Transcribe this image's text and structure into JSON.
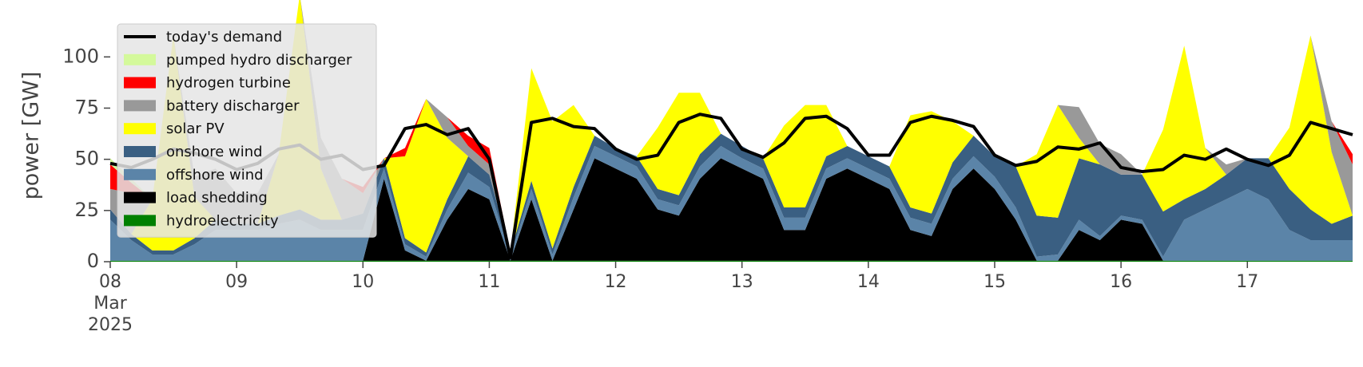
{
  "chart_data": {
    "type": "stacked_area",
    "y_label": "power [GW]",
    "x": [
      8,
      8.167,
      8.333,
      8.5,
      8.667,
      8.833,
      9,
      9.167,
      9.333,
      9.5,
      9.667,
      9.833,
      10,
      10.167,
      10.333,
      10.5,
      10.667,
      10.833,
      11,
      11.167,
      11.333,
      11.5,
      11.667,
      11.833,
      12,
      12.167,
      12.333,
      12.5,
      12.667,
      12.833,
      13,
      13.167,
      13.333,
      13.5,
      13.667,
      13.833,
      14,
      14.167,
      14.333,
      14.5,
      14.667,
      14.833,
      15,
      15.167,
      15.333,
      15.5,
      15.667,
      15.833,
      16,
      16.167,
      16.333,
      16.5,
      16.667,
      16.833,
      17,
      17.167,
      17.333,
      17.5,
      17.667,
      17.833
    ],
    "xlim": [
      8,
      17.833
    ],
    "xticks": [
      {
        "value": 8,
        "label": "08\nMar\n2025"
      },
      {
        "value": 9,
        "label": "09"
      },
      {
        "value": 10,
        "label": "10"
      },
      {
        "value": 11,
        "label": "11"
      },
      {
        "value": 12,
        "label": "12"
      },
      {
        "value": 13,
        "label": "13"
      },
      {
        "value": 14,
        "label": "14"
      },
      {
        "value": 15,
        "label": "15"
      },
      {
        "value": 16,
        "label": "16"
      },
      {
        "value": 17,
        "label": "17"
      }
    ],
    "ylim": [
      0,
      120
    ],
    "yticks": [
      0,
      25,
      50,
      75,
      100
    ],
    "legend_position": "upper left",
    "series": [
      {
        "name": "hydroelectricity",
        "color": "#008000",
        "values": [
          0.5,
          0.5,
          0.5,
          0.5,
          0.5,
          0.5,
          0.5,
          0.5,
          0.5,
          0.5,
          0.5,
          0.5,
          0.5,
          0.5,
          0.5,
          0.5,
          0.5,
          0.5,
          0.5,
          0.5,
          0.5,
          0.5,
          0.5,
          0.5,
          0.5,
          0.5,
          0.5,
          0.5,
          0.5,
          0.5,
          0.5,
          0.5,
          0.5,
          0.5,
          0.5,
          0.5,
          0.5,
          0.5,
          0.5,
          0.5,
          0.5,
          0.5,
          0.5,
          0.5,
          0.5,
          0.5,
          0.5,
          0.5,
          0.5,
          0.5,
          0.5,
          0.5,
          0.5,
          0.5,
          0.5,
          0.5,
          0.5,
          0.5,
          0.5,
          0.5
        ]
      },
      {
        "name": "load shedding",
        "color": "#000000",
        "values": [
          0,
          0,
          0,
          0,
          0,
          0,
          0,
          0,
          0,
          0,
          0,
          0,
          0,
          40,
          5,
          0,
          20,
          35,
          30,
          0,
          30,
          0,
          25,
          50,
          45,
          40,
          25,
          22,
          40,
          50,
          45,
          40,
          15,
          15,
          40,
          45,
          40,
          35,
          15,
          12,
          35,
          45,
          35,
          20,
          0,
          0,
          15,
          10,
          20,
          18,
          0,
          0,
          0,
          0,
          0,
          0,
          0,
          0,
          0,
          0
        ]
      },
      {
        "name": "offshore wind",
        "color": "#5b84a8",
        "values": [
          20,
          10,
          3,
          3,
          8,
          15,
          15,
          15,
          18,
          20,
          15,
          15,
          15,
          5,
          3,
          2,
          5,
          8,
          6,
          2,
          5,
          3,
          6,
          6,
          6,
          6,
          5,
          5,
          6,
          6,
          5,
          5,
          6,
          6,
          5,
          5,
          5,
          5,
          6,
          6,
          5,
          6,
          6,
          6,
          2,
          3,
          5,
          2,
          2,
          2,
          2,
          20,
          25,
          30,
          35,
          30,
          15,
          10,
          10,
          10
        ]
      },
      {
        "name": "onshore wind",
        "color": "#3a5f82",
        "values": [
          5,
          3,
          2,
          2,
          3,
          5,
          3,
          3,
          4,
          5,
          5,
          5,
          8,
          5,
          3,
          2,
          5,
          8,
          6,
          2,
          4,
          3,
          5,
          5,
          4,
          5,
          5,
          5,
          6,
          6,
          6,
          5,
          5,
          5,
          6,
          6,
          6,
          6,
          5,
          5,
          8,
          10,
          10,
          20,
          20,
          18,
          30,
          35,
          20,
          22,
          22,
          10,
          10,
          12,
          15,
          20,
          20,
          15,
          8,
          12
        ]
      },
      {
        "name": "solar PV",
        "color": "#ffff00",
        "values": [
          0,
          0,
          25,
          105,
          20,
          0,
          0,
          0,
          30,
          105,
          25,
          0,
          0,
          0,
          40,
          75,
          30,
          0,
          0,
          0,
          55,
          62,
          40,
          0,
          0,
          0,
          30,
          50,
          30,
          0,
          0,
          0,
          40,
          50,
          25,
          0,
          0,
          0,
          45,
          50,
          20,
          0,
          0,
          0,
          30,
          55,
          10,
          0,
          0,
          0,
          40,
          75,
          20,
          0,
          0,
          0,
          30,
          85,
          35,
          0
        ]
      },
      {
        "name": "battery discharger",
        "color": "#999999",
        "values": [
          10,
          20,
          0,
          0,
          10,
          25,
          15,
          15,
          0,
          0,
          15,
          20,
          10,
          0,
          0,
          0,
          10,
          5,
          5,
          0,
          0,
          0,
          0,
          0,
          0,
          0,
          0,
          0,
          0,
          0,
          0,
          0,
          0,
          0,
          0,
          0,
          0,
          0,
          0,
          0,
          0,
          0,
          0,
          0,
          0,
          0,
          15,
          10,
          10,
          0,
          0,
          0,
          0,
          5,
          0,
          0,
          0,
          0,
          15,
          25
        ]
      },
      {
        "name": "hydrogen turbine",
        "color": "#ff0000",
        "values": [
          12,
          5,
          0,
          0,
          0,
          0,
          0,
          0,
          0,
          0,
          0,
          0,
          3,
          0,
          4,
          0,
          0,
          5,
          8,
          0,
          0,
          0,
          0,
          0,
          0,
          0,
          0,
          0,
          0,
          0,
          0,
          0,
          0,
          0,
          0,
          0,
          0,
          0,
          0,
          0,
          0,
          0,
          0,
          0,
          0,
          0,
          0,
          0,
          0,
          0,
          0,
          0,
          0,
          0,
          0,
          0,
          0,
          0,
          0,
          5
        ]
      },
      {
        "name": "pumped hydro discharger",
        "color": "#d4f99b",
        "values": [
          3,
          2,
          0,
          0,
          0,
          0,
          0,
          0,
          0,
          0,
          0,
          0,
          0,
          0,
          0,
          0,
          0,
          0,
          0,
          0,
          0,
          0,
          0,
          0,
          0,
          0,
          0,
          0,
          0,
          0,
          0,
          0,
          0,
          0,
          0,
          0,
          0,
          0,
          0,
          0,
          0,
          0,
          0,
          0,
          0,
          0,
          0,
          0,
          0,
          0,
          0,
          0,
          0,
          0,
          0,
          0,
          0,
          0,
          0,
          0
        ]
      }
    ],
    "line": {
      "name": "today's demand",
      "color": "#000000",
      "values": [
        48,
        46,
        50,
        55,
        53,
        50,
        45,
        48,
        55,
        57,
        50,
        52,
        45,
        47,
        65,
        67,
        62,
        65,
        50,
        2,
        68,
        70,
        66,
        65,
        55,
        50,
        52,
        68,
        72,
        70,
        55,
        51,
        58,
        70,
        71,
        65,
        52,
        52,
        68,
        71,
        69,
        66,
        52,
        47,
        49,
        56,
        55,
        58,
        46,
        44,
        45,
        52,
        50,
        55,
        50,
        47,
        52,
        68,
        65,
        62
      ]
    }
  }
}
